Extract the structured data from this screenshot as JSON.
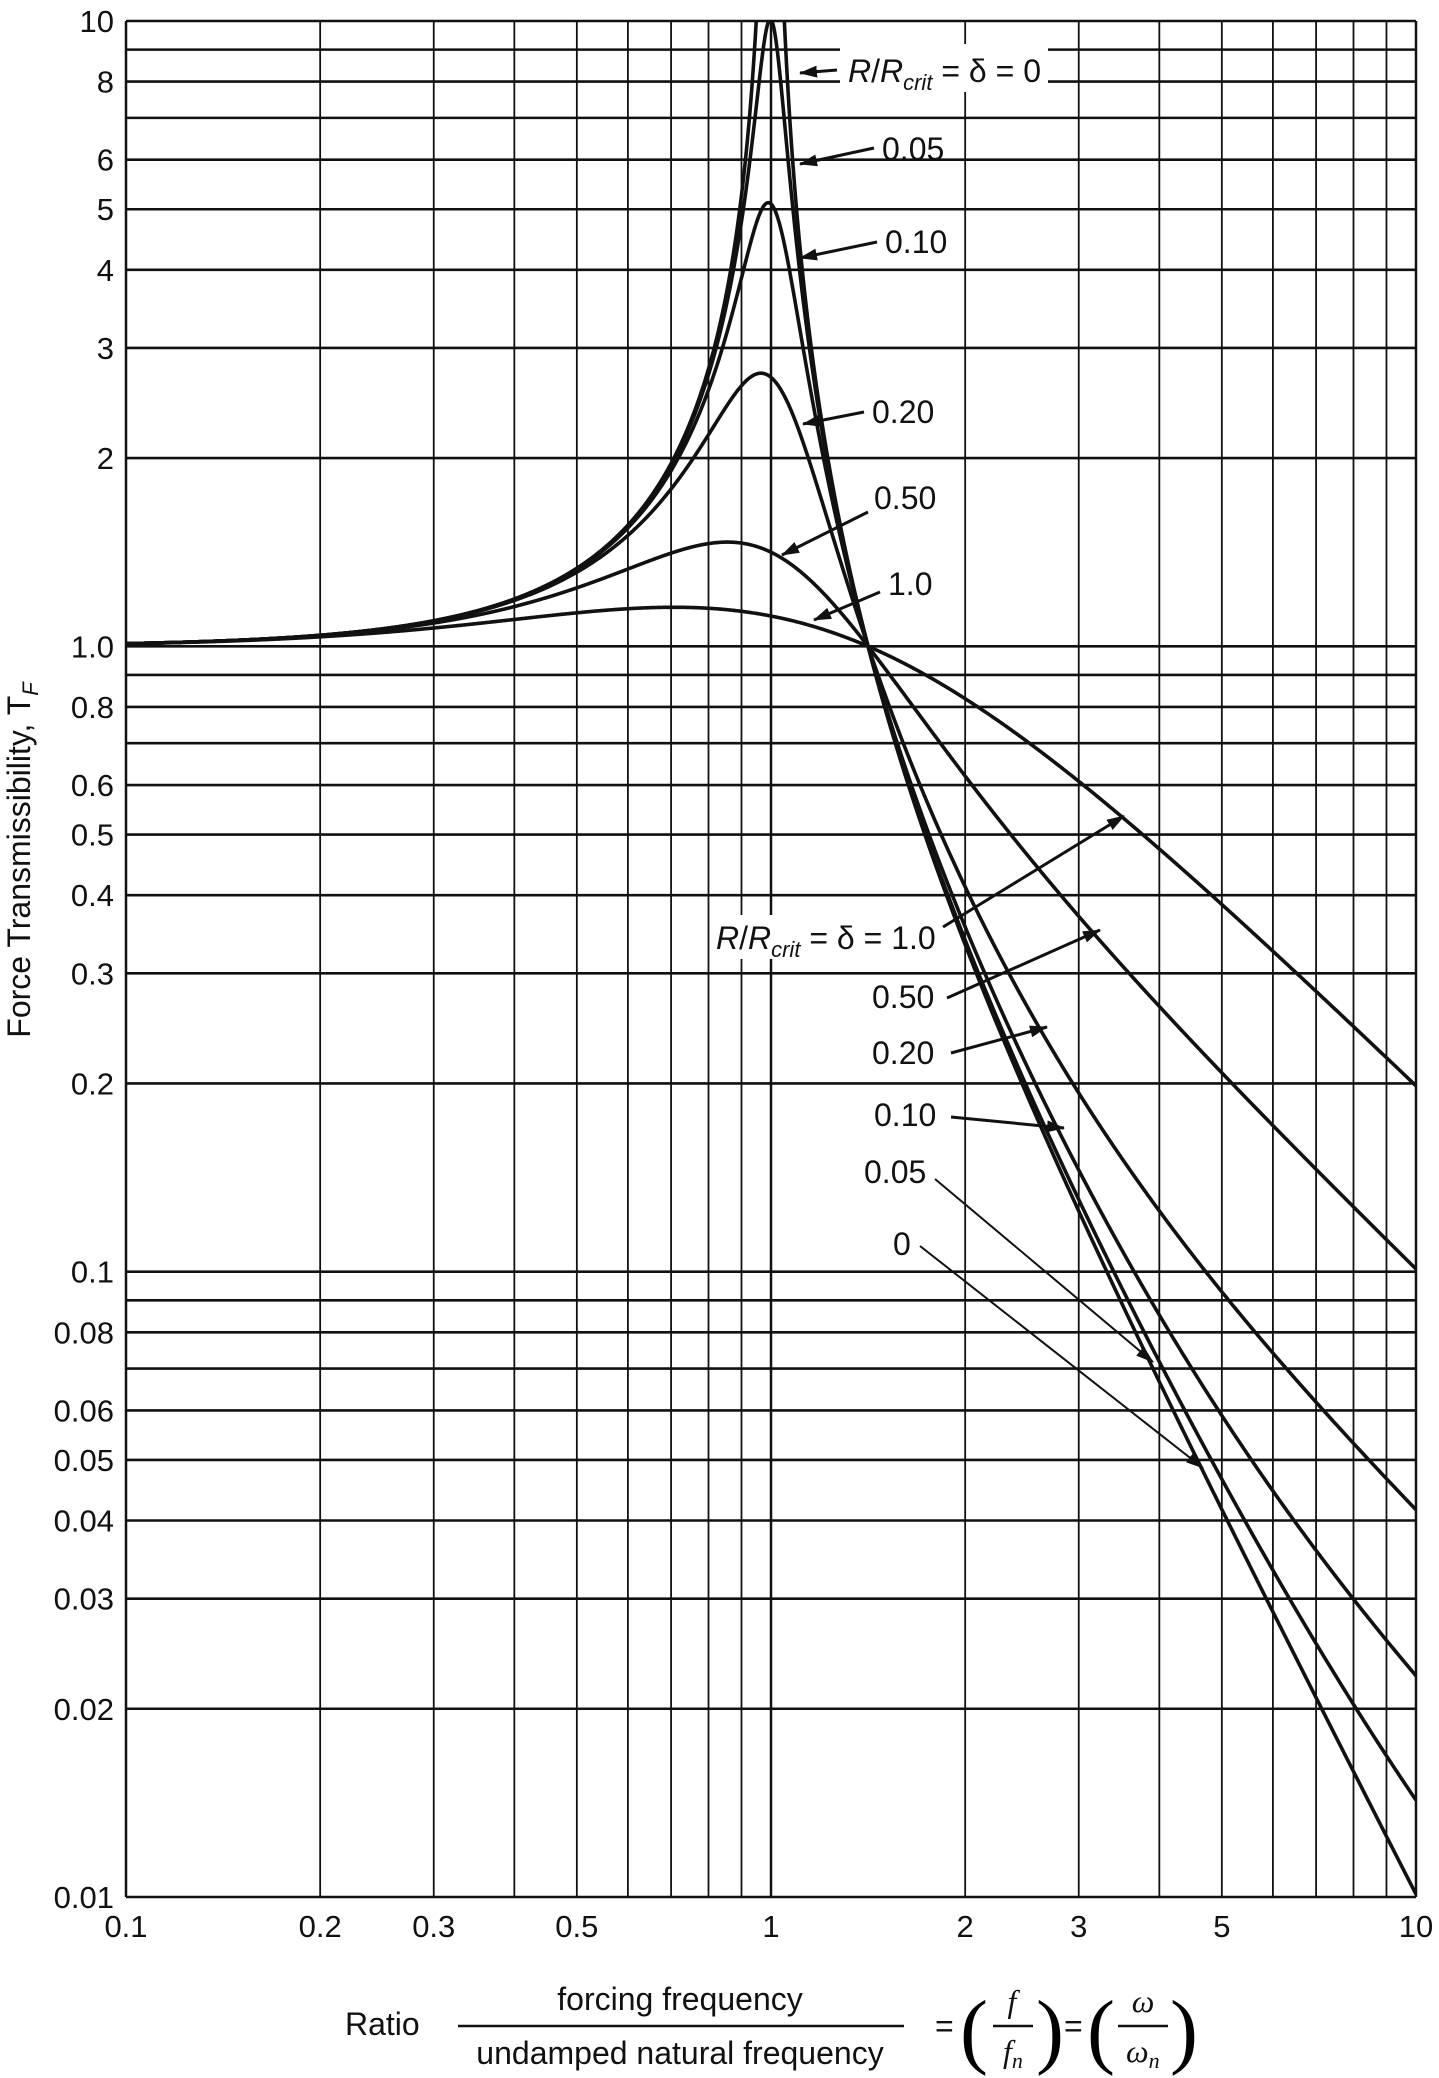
{
  "chart_data": {
    "type": "line",
    "x_scale": "log",
    "y_scale": "log",
    "xlim": [
      0.1,
      10
    ],
    "ylim": [
      0.01,
      10
    ],
    "grid": true,
    "x_ticks": [
      "0.1",
      "0.2",
      "0.3",
      "0.5",
      "1",
      "2",
      "3",
      "5",
      "10"
    ],
    "x_tick_values": [
      0.1,
      0.2,
      0.3,
      0.5,
      1,
      2,
      3,
      5,
      10
    ],
    "y_ticks": [
      "10",
      "8",
      "6",
      "5",
      "4",
      "3",
      "2",
      "1.0",
      "0.8",
      "0.6",
      "0.5",
      "0.4",
      "0.3",
      "0.2",
      "0.1",
      "0.08",
      "0.06",
      "0.05",
      "0.04",
      "0.03",
      "0.02",
      "0.01"
    ],
    "y_tick_values": [
      10,
      8,
      6,
      5,
      4,
      3,
      2,
      1,
      0.8,
      0.6,
      0.5,
      0.4,
      0.3,
      0.2,
      0.1,
      0.08,
      0.06,
      0.05,
      0.04,
      0.03,
      0.02,
      0.01
    ],
    "ylabel": {
      "text": "Force Transmissibility, T",
      "sub": "F"
    },
    "xlabel": {
      "ratio": "Ratio",
      "numerator": "forcing frequency",
      "denominator": "undamped natural frequency",
      "eq1": "=",
      "f": "f",
      "fn": "f",
      "fn_sub": "n",
      "eq2": "=",
      "omega": "ω",
      "omega_n": "ω",
      "omega_n_sub": "n"
    },
    "series": [
      {
        "damping": 0
      },
      {
        "damping": 0.05
      },
      {
        "damping": 0.1
      },
      {
        "damping": 0.2
      },
      {
        "damping": 0.5
      },
      {
        "damping": 1.0
      }
    ],
    "annotations_upper": {
      "first": {
        "r": "R",
        "slash": "/",
        "rc": "R",
        "sub": "crit",
        "rest": " = δ = 0"
      },
      "labels": [
        "0.05",
        "0.10",
        "0.20",
        "0.50",
        "1.0"
      ]
    },
    "annotations_lower": {
      "first": {
        "r": "R",
        "slash": "/",
        "rc": "R",
        "sub": "crit",
        "rest": " = δ = 1.0"
      },
      "labels": [
        "0.50",
        "0.20",
        "0.10",
        "0.05",
        "0"
      ]
    }
  }
}
